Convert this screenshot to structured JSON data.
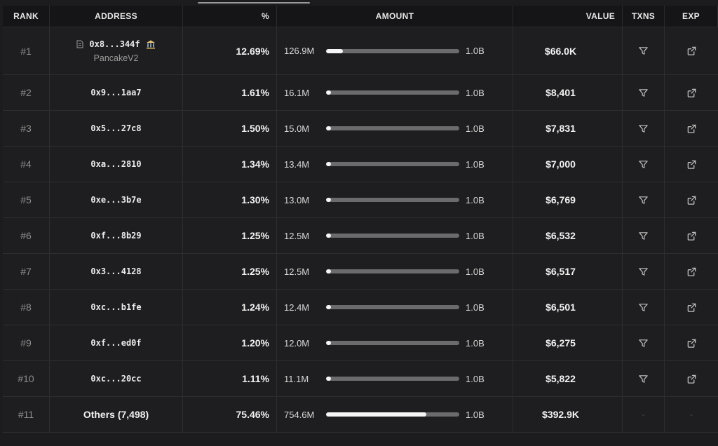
{
  "headers": {
    "rank": "RANK",
    "address": "ADDRESS",
    "pct": "%",
    "amount": "AMOUNT",
    "value": "VALUE",
    "txns": "TXNS",
    "exp": "EXP"
  },
  "max_amount": "1.0B",
  "rows": [
    {
      "rank": "#1",
      "address": "0x8...344f",
      "label": "PancakeV2",
      "pct": "12.69%",
      "amount": "126.9M",
      "fill": 0.1269,
      "value": "$66.0K"
    },
    {
      "rank": "#2",
      "address": "0x9...1aa7",
      "pct": "1.61%",
      "amount": "16.1M",
      "fill": 0.0161,
      "value": "$8,401"
    },
    {
      "rank": "#3",
      "address": "0x5...27c8",
      "pct": "1.50%",
      "amount": "15.0M",
      "fill": 0.015,
      "value": "$7,831"
    },
    {
      "rank": "#4",
      "address": "0xa...2810",
      "pct": "1.34%",
      "amount": "13.4M",
      "fill": 0.0134,
      "value": "$7,000"
    },
    {
      "rank": "#5",
      "address": "0xe...3b7e",
      "pct": "1.30%",
      "amount": "13.0M",
      "fill": 0.013,
      "value": "$6,769"
    },
    {
      "rank": "#6",
      "address": "0xf...8b29",
      "pct": "1.25%",
      "amount": "12.5M",
      "fill": 0.0125,
      "value": "$6,532"
    },
    {
      "rank": "#7",
      "address": "0x3...4128",
      "pct": "1.25%",
      "amount": "12.5M",
      "fill": 0.0125,
      "value": "$6,517"
    },
    {
      "rank": "#8",
      "address": "0xc...b1fe",
      "pct": "1.24%",
      "amount": "12.4M",
      "fill": 0.0124,
      "value": "$6,501"
    },
    {
      "rank": "#9",
      "address": "0xf...ed0f",
      "pct": "1.20%",
      "amount": "12.0M",
      "fill": 0.012,
      "value": "$6,275"
    },
    {
      "rank": "#10",
      "address": "0xc...20cc",
      "pct": "1.11%",
      "amount": "11.1M",
      "fill": 0.0111,
      "value": "$5,822"
    }
  ],
  "others": {
    "rank": "#11",
    "label": "Others (7,498)",
    "pct": "75.46%",
    "amount": "754.6M",
    "fill": 0.7546,
    "value": "$392.9K",
    "txns": "-",
    "exp": "-"
  },
  "colors": {
    "bar_fill": "#f5f5f5",
    "bar_track": "#6b6b6d",
    "background": "#1c1c1e"
  }
}
